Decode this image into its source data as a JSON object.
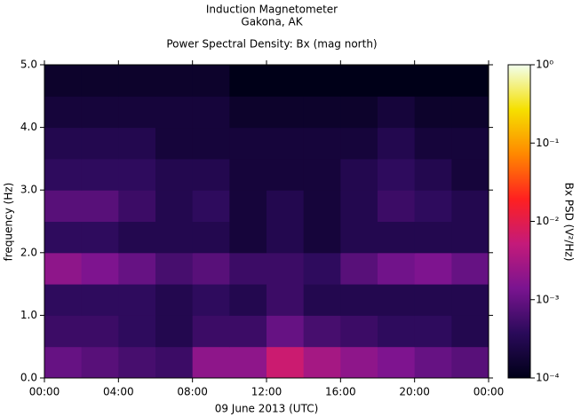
{
  "chart_data": {
    "type": "heatmap",
    "title": "Induction Magnetometer",
    "subtitle": "Gakona, AK",
    "plot_title": "Power Spectral Density: Bx (mag north)",
    "x_label": "09 June 2013 (UTC)",
    "y_label": "frequency (Hz)",
    "colorbar_label": "Bx PSD (V²/Hz)",
    "xbins": [
      0,
      2,
      4,
      6,
      8,
      10,
      12,
      14,
      16,
      18,
      20,
      22,
      24
    ],
    "ybins": [
      0,
      0.5,
      1,
      1.5,
      2,
      2.5,
      3,
      3.5,
      4,
      4.5,
      5
    ],
    "z": [
      [
        0.001,
        0.0008,
        0.0006,
        0.0005,
        0.002,
        0.002,
        0.006,
        0.003,
        0.002,
        0.0015,
        0.001,
        0.0008
      ],
      [
        0.0005,
        0.0005,
        0.0004,
        0.0003,
        0.0005,
        0.0005,
        0.001,
        0.0006,
        0.0005,
        0.0004,
        0.0004,
        0.0003
      ],
      [
        0.0004,
        0.0004,
        0.0004,
        0.0003,
        0.0004,
        0.0003,
        0.0005,
        0.0003,
        0.0003,
        0.0003,
        0.0003,
        0.0003
      ],
      [
        0.002,
        0.0015,
        0.001,
        0.0006,
        0.0008,
        0.0005,
        0.0005,
        0.0004,
        0.0008,
        0.0012,
        0.0015,
        0.001
      ],
      [
        0.0004,
        0.0004,
        0.0003,
        0.0003,
        0.0003,
        0.0002,
        0.0003,
        0.0002,
        0.0003,
        0.0003,
        0.0003,
        0.0003
      ],
      [
        0.0008,
        0.0008,
        0.0005,
        0.0003,
        0.0004,
        0.0002,
        0.0003,
        0.0002,
        0.0003,
        0.0005,
        0.0004,
        0.0003
      ],
      [
        0.0004,
        0.0004,
        0.0004,
        0.0003,
        0.0003,
        0.0002,
        0.0002,
        0.0002,
        0.0003,
        0.0004,
        0.0003,
        0.0002
      ],
      [
        0.0003,
        0.0003,
        0.0003,
        0.0002,
        0.0002,
        0.0002,
        0.0002,
        0.0002,
        0.0002,
        0.0003,
        0.0002,
        0.0002
      ],
      [
        0.0002,
        0.0002,
        0.0002,
        0.0002,
        0.0002,
        0.00015,
        0.00015,
        0.00015,
        0.00015,
        0.0002,
        0.00015,
        0.00015
      ],
      [
        0.00015,
        0.00015,
        0.00015,
        0.00015,
        0.00015,
        0.0001,
        0.0001,
        0.0001,
        0.0001,
        0.0001,
        0.0001,
        0.0001
      ]
    ],
    "xlim": [
      0,
      24
    ],
    "xticks": [
      {
        "value": 0,
        "label": "00:00"
      },
      {
        "value": 4,
        "label": "04:00"
      },
      {
        "value": 8,
        "label": "08:00"
      },
      {
        "value": 12,
        "label": "12:00"
      },
      {
        "value": 16,
        "label": "16:00"
      },
      {
        "value": 20,
        "label": "20:00"
      },
      {
        "value": 24,
        "label": "00:00"
      }
    ],
    "ylim": [
      0,
      5
    ],
    "yticks": [
      {
        "value": 0,
        "label": "0.0"
      },
      {
        "value": 1,
        "label": "1.0"
      },
      {
        "value": 2,
        "label": "2.0"
      },
      {
        "value": 3,
        "label": "3.0"
      },
      {
        "value": 4,
        "label": "4.0"
      },
      {
        "value": 5,
        "label": "5.0"
      }
    ],
    "color_scale": "log",
    "clim": [
      0.0001,
      1
    ],
    "cticks": [
      {
        "value": 0.0001,
        "label": "10⁻⁴"
      },
      {
        "value": 0.001,
        "label": "10⁻³"
      },
      {
        "value": 0.01,
        "label": "10⁻²"
      },
      {
        "value": 0.1,
        "label": "10⁻¹"
      },
      {
        "value": 1,
        "label": "10⁰"
      }
    ],
    "colormap": [
      "#000018",
      "#2a0a5a",
      "#7a1490",
      "#c41a7a",
      "#ff2020",
      "#ff8800",
      "#f5e000",
      "#f2ffee"
    ]
  }
}
